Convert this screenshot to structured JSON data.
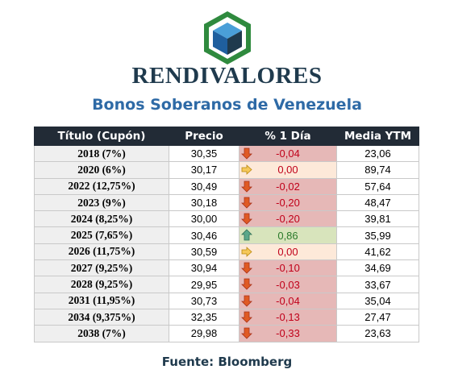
{
  "brand": {
    "name": "RENDIVALORES"
  },
  "title": "Bonos Soberanos de Venezuela",
  "columns": [
    "Título (Cupón)",
    "Precio",
    "% 1 Día",
    "Media YTM"
  ],
  "rows": [
    {
      "title": "2018 (7%)",
      "price": "30,35",
      "change": "-0,04",
      "trend": "down",
      "ytm": "23,06"
    },
    {
      "title": "2020 (6%)",
      "price": "30,17",
      "change": "0,00",
      "trend": "flat",
      "ytm": "89,74"
    },
    {
      "title": "2022 (12,75%)",
      "price": "30,49",
      "change": "-0,02",
      "trend": "down",
      "ytm": "57,64"
    },
    {
      "title": "2023 (9%)",
      "price": "30,18",
      "change": "-0,20",
      "trend": "down",
      "ytm": "48,47"
    },
    {
      "title": "2024 (8,25%)",
      "price": "30,00",
      "change": "-0,20",
      "trend": "down",
      "ytm": "39,81"
    },
    {
      "title": "2025 (7,65%)",
      "price": "30,46",
      "change": "0,86",
      "trend": "up",
      "ytm": "35,99"
    },
    {
      "title": "2026 (11,75%)",
      "price": "30,59",
      "change": "0,00",
      "trend": "flat",
      "ytm": "41,62"
    },
    {
      "title": "2027 (9,25%)",
      "price": "30,94",
      "change": "-0,10",
      "trend": "down",
      "ytm": "34,69"
    },
    {
      "title": "2028 (9,25%)",
      "price": "29,95",
      "change": "-0,03",
      "trend": "down",
      "ytm": "33,67"
    },
    {
      "title": "2031 (11,95%)",
      "price": "30,73",
      "change": "-0,04",
      "trend": "down",
      "ytm": "35,04"
    },
    {
      "title": "2034 (9,375%)",
      "price": "32,35",
      "change": "-0,13",
      "trend": "down",
      "ytm": "27,47"
    },
    {
      "title": "2038 (7%)",
      "price": "29,98",
      "change": "-0,33",
      "trend": "down",
      "ytm": "23,63"
    }
  ],
  "source": "Fuente: Bloomberg",
  "colors": {
    "header_bg": "#222b36",
    "title_blue": "#2e6aa6",
    "down_bg": "#e6b8b7",
    "flat_bg": "#fde9d9",
    "up_bg": "#d8e4bc"
  }
}
